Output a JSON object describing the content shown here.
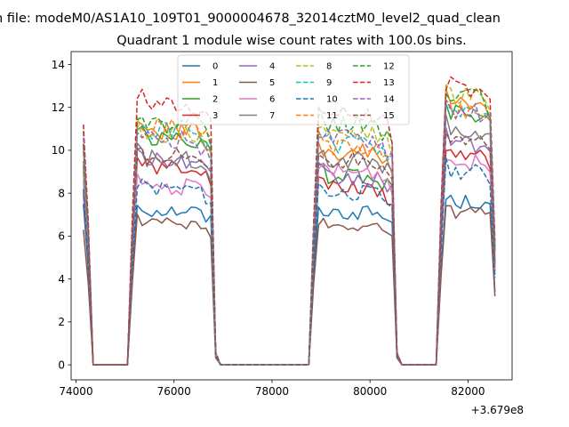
{
  "chart_data": {
    "type": "line",
    "suptitle": "n file: modeM0/AS1A10_109T01_9000004678_32014cztM0_level2_quad_clean",
    "title": "Quadrant 1 module wise count rates with 100.0s bins.",
    "xlabel": "",
    "ylabel": "",
    "offset_label": "+3.679e8",
    "xlim": [
      73900,
      82900
    ],
    "ylim": [
      -0.7,
      14.6
    ],
    "xticks": [
      74000,
      76000,
      78000,
      80000,
      82000
    ],
    "xtick_labels": [
      "74000",
      "76000",
      "78000",
      "80000",
      "82000"
    ],
    "yticks": [
      0,
      2,
      4,
      6,
      8,
      10,
      12,
      14
    ],
    "ytick_labels": [
      "0",
      "2",
      "4",
      "6",
      "8",
      "10",
      "12",
      "14"
    ],
    "grid": false,
    "legend": {
      "placement": "top-center",
      "columns": 4
    },
    "colors": [
      "#1f77b4",
      "#ff7f0e",
      "#2ca02c",
      "#d62728",
      "#9467bd",
      "#8c564b",
      "#e377c2",
      "#7f7f7f",
      "#bcbd22",
      "#17becf",
      "#1f77b4",
      "#ff7f0e",
      "#2ca02c",
      "#d62728",
      "#9467bd",
      "#8c564b"
    ],
    "segments": [
      {
        "start": 74150,
        "end": 74250,
        "ramp_at": 74350
      },
      {
        "start": 75150,
        "end": 76750,
        "ramp_at": 76850
      },
      {
        "start": 78850,
        "end": 80450,
        "ramp_at": 80550
      },
      {
        "start": 81450,
        "end": 82550,
        "ramp_at": 82550
      }
    ],
    "series": [
      {
        "name": "0",
        "style": "solid",
        "levels": [
          7.5,
          7.2,
          7.1,
          7.6
        ]
      },
      {
        "name": "1",
        "style": "solid",
        "levels": [
          9.0,
          10.9,
          9.9,
          12.1
        ]
      },
      {
        "name": "2",
        "style": "solid",
        "levels": [
          9.2,
          10.5,
          8.8,
          11.7
        ]
      },
      {
        "name": "3",
        "style": "solid",
        "levels": [
          8.0,
          9.2,
          8.2,
          9.8
        ]
      },
      {
        "name": "4",
        "style": "solid",
        "levels": [
          9.5,
          9.5,
          8.7,
          10.3
        ]
      },
      {
        "name": "5",
        "style": "solid",
        "levels": [
          6.3,
          6.6,
          6.5,
          7.1
        ]
      },
      {
        "name": "6",
        "style": "solid",
        "levels": [
          8.6,
          8.3,
          9.0,
          9.4
        ]
      },
      {
        "name": "7",
        "style": "solid",
        "levels": [
          9.3,
          9.6,
          9.6,
          10.9
        ]
      },
      {
        "name": "8",
        "style": "dashed",
        "levels": [
          9.9,
          10.7,
          10.7,
          12.5
        ]
      },
      {
        "name": "9",
        "style": "dashed",
        "levels": [
          10.1,
          10.9,
          10.3,
          11.9
        ]
      },
      {
        "name": "10",
        "style": "dashed",
        "levels": [
          8.2,
          8.2,
          8.0,
          9.0
        ]
      },
      {
        "name": "11",
        "style": "dashed",
        "levels": [
          10.3,
          11.0,
          10.2,
          11.8
        ]
      },
      {
        "name": "12",
        "style": "dashed",
        "levels": [
          10.9,
          11.2,
          11.2,
          12.4
        ]
      },
      {
        "name": "13",
        "style": "dashed",
        "levels": [
          11.2,
          12.1,
          11.6,
          12.9
        ]
      },
      {
        "name": "14",
        "style": "dashed",
        "levels": [
          10.6,
          10.5,
          10.5,
          11.8
        ]
      },
      {
        "name": "15",
        "style": "dashed",
        "levels": [
          10.3,
          9.7,
          9.6,
          10.6
        ]
      }
    ]
  }
}
